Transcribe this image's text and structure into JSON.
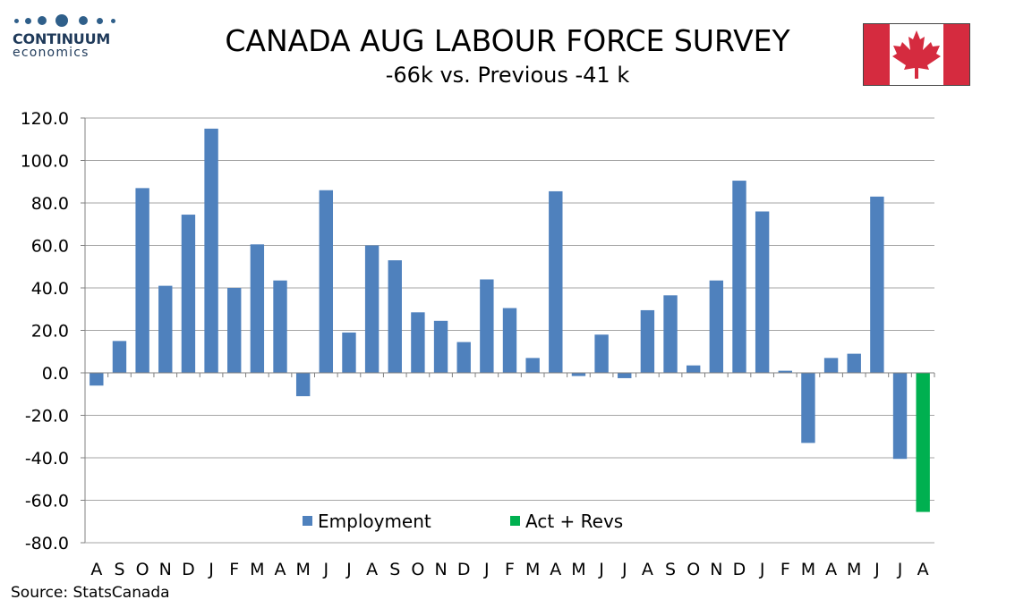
{
  "brand": {
    "name": "CONTINUUM",
    "sub": "economics"
  },
  "title": "CANADA AUG LABOUR FORCE SURVEY",
  "subtitle": "-66k vs.  Previous -41 k",
  "source": "Source: StatsCanada",
  "flag_icon": "canada-flag-icon",
  "colors": {
    "employment": "#4f81bd",
    "act_revs": "#00b050",
    "grid": "#a6a6a6",
    "axis": "#808080"
  },
  "chart_data": {
    "type": "bar",
    "title": "CANADA AUG LABOUR FORCE SURVEY",
    "subtitle": "-66k vs.  Previous -41 k",
    "categories": [
      "A",
      "S",
      "O",
      "N",
      "D",
      "J",
      "F",
      "M",
      "A",
      "M",
      "J",
      "J",
      "A",
      "S",
      "O",
      "N",
      "D",
      "J",
      "F",
      "M",
      "A",
      "M",
      "J",
      "J",
      "A",
      "S",
      "O",
      "N",
      "D",
      "J",
      "F",
      "M",
      "A",
      "M",
      "J",
      "J",
      "A"
    ],
    "series": [
      {
        "name": "Employment",
        "values": [
          -6.0,
          15.0,
          87.0,
          41.0,
          74.5,
          115.0,
          40.0,
          60.5,
          43.5,
          -11.0,
          86.0,
          19.0,
          60.0,
          53.0,
          28.5,
          24.5,
          14.5,
          44.0,
          30.5,
          7.0,
          85.5,
          -1.5,
          18.0,
          -2.5,
          29.5,
          36.5,
          3.5,
          43.5,
          90.5,
          76.0,
          1.0,
          -33.0,
          7.0,
          9.0,
          83.0,
          -40.5,
          null
        ]
      },
      {
        "name": "Act + Revs",
        "values": [
          null,
          null,
          null,
          null,
          null,
          null,
          null,
          null,
          null,
          null,
          null,
          null,
          null,
          null,
          null,
          null,
          null,
          null,
          null,
          null,
          null,
          null,
          null,
          null,
          null,
          null,
          null,
          null,
          null,
          null,
          null,
          null,
          null,
          null,
          null,
          null,
          -65.5
        ]
      }
    ],
    "ylim": [
      -80,
      120
    ],
    "yticks": [
      "120.0",
      "100.0",
      "80.0",
      "60.0",
      "40.0",
      "20.0",
      "0.0",
      "-20.0",
      "-40.0",
      "-60.0",
      "-80.0"
    ],
    "xlabel": "",
    "ylabel": "",
    "grid": true,
    "legend": "bottom-center"
  }
}
